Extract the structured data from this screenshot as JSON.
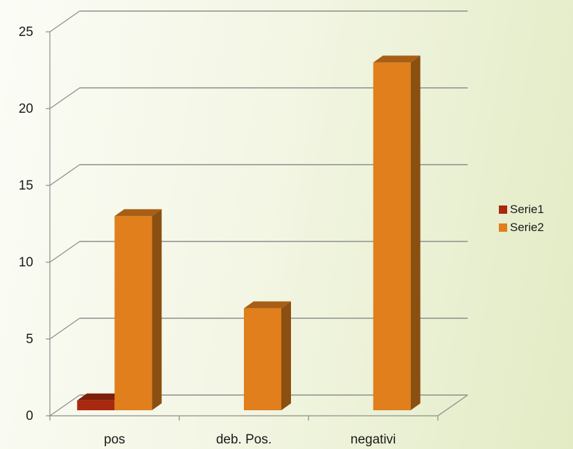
{
  "chart_data": {
    "type": "bar",
    "categories": [
      "pos",
      "deb. Pos.",
      "negativi"
    ],
    "series": [
      {
        "name": "Serie1",
        "values": [
          1,
          0,
          0
        ],
        "color": "#a8290d"
      },
      {
        "name": "Serie2",
        "values": [
          13,
          7,
          23
        ],
        "color": "#e07f1c"
      }
    ],
    "ylim": [
      0,
      25
    ],
    "yticks": [
      0,
      5,
      10,
      15,
      20,
      25
    ],
    "ytick_labels": [
      "0",
      "5",
      "10",
      "15",
      "20",
      "25"
    ],
    "grid": true,
    "legend_position": "right",
    "three_d": true
  }
}
